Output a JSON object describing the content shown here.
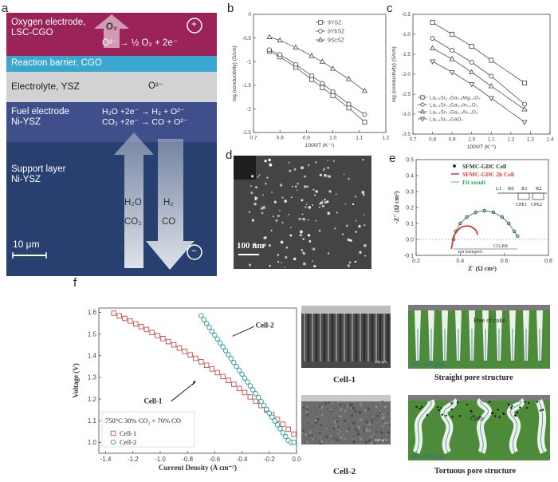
{
  "panel_a": {
    "letter": "a",
    "layers": {
      "oxygen_title": "Oxygen electrode,",
      "oxygen_material": "LSC-CGO",
      "oxygen_eq": "O²⁻ → ½ O₂ + 2e⁻",
      "o2": "O₂",
      "plus": "+",
      "barrier": "Reaction barrier, CGO",
      "electrolyte": "Electrolyte, YSZ",
      "o2minus": "O²⁻",
      "fuel_title": "Fuel electrode",
      "fuel_material": "Ni-YSZ",
      "fuel_eq1": "H₂O +2e⁻ → H₂ + O²⁻",
      "fuel_eq2": "CO₂ +2e⁻ → CO + O²⁻",
      "support_title": "Support layer",
      "support_material": "Ni-YSZ",
      "in1": "H₂O",
      "in2": "CO₂",
      "out1": "H₂",
      "out2": "CO",
      "minus": "−",
      "scale": "10 μm"
    },
    "colors": {
      "oxygen": "#9c2358",
      "barrier": "#3aa7d0",
      "electrolyte": "#cfcfcf",
      "fuel": "#3e4f8c",
      "support": "#243a6e"
    }
  },
  "panel_b": {
    "letter": "b",
    "chart_data": {
      "type": "line",
      "xlabel": "1000/T (K⁻¹)",
      "ylabel": "log (conductivity) (S/cm)",
      "xlim": [
        0.7,
        1.2
      ],
      "ylim": [
        -2.5,
        0
      ],
      "xticks": [
        "0.7",
        "0.8",
        "0.9",
        "1.0",
        "1.1",
        "1.2"
      ],
      "yticks": [
        "0",
        "-0.5",
        "-1",
        "-1.5",
        "-2",
        "-2.5"
      ],
      "legend_position": "top-right",
      "series": [
        {
          "name": "9YSZ",
          "marker": "square",
          "x": [
            0.76,
            0.8,
            0.86,
            0.92,
            0.96,
            1.0,
            1.06,
            1.12
          ],
          "y": [
            -0.78,
            -0.9,
            -1.12,
            -1.38,
            -1.55,
            -1.72,
            -1.98,
            -2.28
          ]
        },
        {
          "name": "9YbSZ",
          "marker": "circle",
          "x": [
            0.76,
            0.8,
            0.86,
            0.92,
            0.96,
            1.0,
            1.06,
            1.12
          ],
          "y": [
            -0.75,
            -0.85,
            -1.06,
            -1.3,
            -1.46,
            -1.64,
            -1.9,
            -2.12
          ]
        },
        {
          "name": "9ScSZ",
          "marker": "triangle",
          "x": [
            0.76,
            0.8,
            0.86,
            0.92,
            0.96,
            1.0,
            1.06,
            1.12
          ],
          "y": [
            -0.48,
            -0.55,
            -0.7,
            -0.88,
            -1.0,
            -1.15,
            -1.37,
            -1.62
          ]
        }
      ]
    }
  },
  "panel_c": {
    "letter": "c",
    "chart_data": {
      "type": "line",
      "xlabel": "1000/T (K⁻¹)",
      "ylabel": "log (conductivity) (S/cm)",
      "xlim": [
        0.7,
        1.4
      ],
      "ylim": [
        -3.5,
        -0.5
      ],
      "xticks": [
        "0.7",
        "0.8",
        "0.9",
        "1.0",
        "1.1",
        "1.2",
        "1.3",
        "1.4"
      ],
      "yticks": [
        "-0.5",
        "-1.0",
        "-1.5",
        "-2.0",
        "-2.5",
        "-3.0",
        "-3.5"
      ],
      "legend_position": "bottom-left",
      "series": [
        {
          "name": "La₀.₉Sr₀.₁Ga₀.₈Mg₀.₁O₃",
          "marker": "square",
          "x": [
            0.8,
            0.9,
            1.0,
            1.1,
            1.27
          ],
          "y": [
            -0.7,
            -1.0,
            -1.3,
            -1.65,
            -2.22
          ]
        },
        {
          "name": "La₀.₉Sr₀.₁Ga₀.₉In₀.₁O₃",
          "marker": "circle",
          "x": [
            0.8,
            0.9,
            1.0,
            1.1,
            1.27
          ],
          "y": [
            -1.1,
            -1.4,
            -1.7,
            -2.05,
            -2.75
          ]
        },
        {
          "name": "La₀.₉Sr₀.₁Ga₀.₉Al₀.₁O₃",
          "marker": "triangle",
          "x": [
            0.8,
            0.9,
            1.0,
            1.1,
            1.27
          ],
          "y": [
            -1.35,
            -1.62,
            -1.95,
            -2.3,
            -2.88
          ]
        },
        {
          "name": "La₀.₉Sr₀.₁GaO₃",
          "marker": "invtriangle",
          "x": [
            0.8,
            0.9,
            1.0,
            1.1,
            1.27
          ],
          "y": [
            -1.68,
            -1.95,
            -2.25,
            -2.6,
            -3.2
          ]
        }
      ]
    }
  },
  "panel_d": {
    "letter": "d",
    "scale": "100 nm"
  },
  "panel_e": {
    "letter": "e",
    "chart_data": {
      "type": "line",
      "xlabel": "Z' (Ω cm²)",
      "ylabel": "-Z'' (Ω cm²)",
      "xlim": [
        0.2,
        0.8
      ],
      "ylim": [
        -0.1,
        0.5
      ],
      "xticks": [
        "0.2",
        "0.4",
        "0.6",
        "0.8"
      ],
      "yticks": [
        "-0.1",
        "0.0",
        "0.1",
        "0.2",
        "0.3",
        "0.4",
        "0.5"
      ],
      "legend_position": "top-right",
      "series": [
        {
          "name": "SFMC-GDC Cell",
          "color": "#333333",
          "x": [
            0.37,
            0.38,
            0.4,
            0.43,
            0.47,
            0.51,
            0.55,
            0.59,
            0.62,
            0.645,
            0.66
          ],
          "y": [
            0.0,
            0.05,
            0.1,
            0.14,
            0.17,
            0.18,
            0.17,
            0.14,
            0.1,
            0.05,
            0.02
          ]
        },
        {
          "name": "SFMC-GDC 2h Cell",
          "color": "#e03a3a",
          "x": [
            0.36,
            0.37,
            0.39,
            0.41,
            0.43,
            0.45,
            0.47,
            0.48
          ],
          "y": [
            -0.06,
            0.02,
            0.06,
            0.08,
            0.085,
            0.08,
            0.06,
            0.03
          ]
        },
        {
          "name": "Fit result",
          "color": "#2fa84f"
        }
      ],
      "annotations": {
        "ion": "ion transport",
        "co2rr": "CO₂RR",
        "circuit": [
          "L1",
          "R0",
          "R1",
          "R2",
          "CPE1",
          "CPE2"
        ]
      }
    }
  },
  "panel_f": {
    "letter": "f",
    "chart_data": {
      "type": "scatter",
      "xlabel": "Current Density (A cm⁻²)",
      "ylabel": "Voltage (V)",
      "xlim": [
        -1.45,
        0.0
      ],
      "ylim": [
        0.95,
        1.62
      ],
      "xticks": [
        "-1.4",
        "-1.2",
        "-1.0",
        "-0.8",
        "-0.6",
        "-0.4",
        "-0.2",
        "0.0"
      ],
      "yticks": [
        "1.6",
        "1.5",
        "1.4",
        "1.3",
        "1.2",
        "1.1",
        "1.0"
      ],
      "condition": "750°C 30% CO₂ + 70% CO",
      "series": [
        {
          "name": "Cell-1",
          "marker": "square",
          "color": "#d04a4a",
          "x": [
            -1.34,
            -1.3,
            -1.26,
            -1.22,
            -1.18,
            -1.14,
            -1.1,
            -1.06,
            -1.02,
            -0.98,
            -0.94,
            -0.9,
            -0.86,
            -0.82,
            -0.78,
            -0.74,
            -0.7,
            -0.66,
            -0.62,
            -0.58,
            -0.54,
            -0.5,
            -0.46,
            -0.42,
            -0.38,
            -0.34,
            -0.3,
            -0.26,
            -0.22,
            -0.18,
            -0.14,
            -0.1,
            -0.06,
            -0.02
          ],
          "y": [
            1.596,
            1.584,
            1.572,
            1.56,
            1.547,
            1.534,
            1.521,
            1.507,
            1.493,
            1.479,
            1.465,
            1.45,
            1.435,
            1.42,
            1.404,
            1.388,
            1.372,
            1.356,
            1.339,
            1.322,
            1.304,
            1.286,
            1.268,
            1.249,
            1.23,
            1.21,
            1.19,
            1.17,
            1.149,
            1.128,
            1.106,
            1.084,
            1.061,
            1.038
          ]
        },
        {
          "name": "Cell-2",
          "marker": "circle",
          "color": "#2a9a9a",
          "x": [
            -0.7,
            -0.68,
            -0.66,
            -0.64,
            -0.62,
            -0.6,
            -0.58,
            -0.56,
            -0.54,
            -0.52,
            -0.5,
            -0.48,
            -0.46,
            -0.44,
            -0.42,
            -0.4,
            -0.38,
            -0.36,
            -0.34,
            -0.32,
            -0.3,
            -0.28,
            -0.26,
            -0.24,
            -0.22,
            -0.2,
            -0.18,
            -0.16,
            -0.14,
            -0.12,
            -0.1,
            -0.08,
            -0.06,
            -0.04,
            -0.02
          ],
          "y": [
            1.585,
            1.567,
            1.549,
            1.531,
            1.513,
            1.495,
            1.477,
            1.459,
            1.441,
            1.423,
            1.405,
            1.387,
            1.369,
            1.351,
            1.333,
            1.315,
            1.297,
            1.279,
            1.261,
            1.243,
            1.225,
            1.207,
            1.189,
            1.171,
            1.153,
            1.135,
            1.117,
            1.099,
            1.081,
            1.063,
            1.045,
            1.027,
            1.009,
            1.0,
            1.0
          ]
        }
      ],
      "annotations": [
        "Cell-1",
        "Cell-2"
      ]
    },
    "sem_labels": {
      "cell1": "Cell-1",
      "cell2": "Cell-2",
      "scale1": "100 μm",
      "scale2": "100 μm"
    },
    "schematics": {
      "top_caption": "Straight pore structure",
      "top_label": "Free of coke",
      "top_flow": "CO +CO₂ flow",
      "bottom_caption": "Tortuous pore structure",
      "bottom_label": "Coke",
      "bottom_flow": "CO +CO₂ flow"
    }
  }
}
